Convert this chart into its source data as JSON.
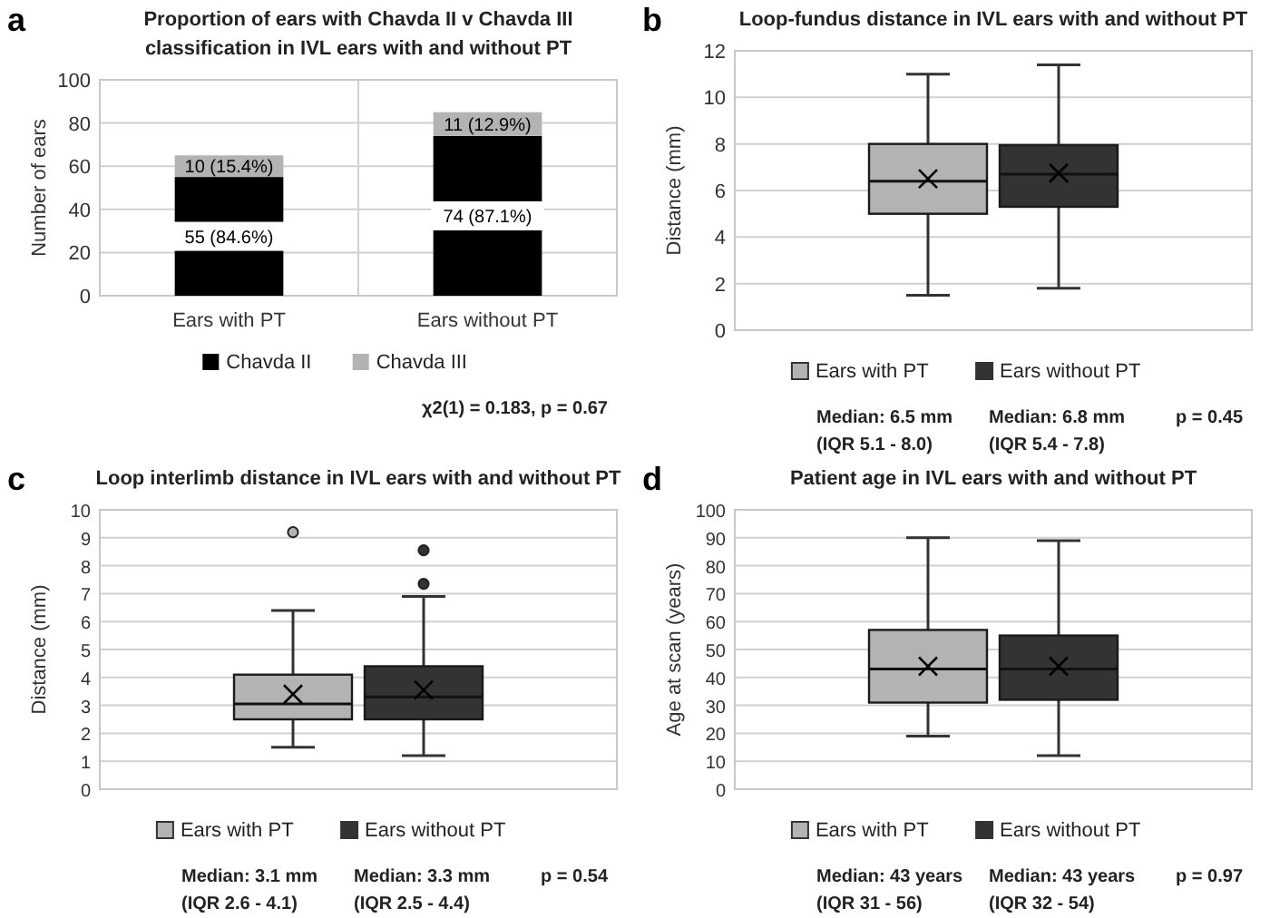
{
  "chart_data": [
    {
      "type": "bar",
      "title": "Proportion of ears with Chavda II v Chavda III classification in IVL ears with and without PT",
      "ylabel": "Number of ears",
      "categories": [
        "Ears with PT",
        "Ears without PT"
      ],
      "stacked": true,
      "ylim": [
        0,
        100
      ],
      "yticks": [
        0,
        20,
        40,
        60,
        80,
        100
      ],
      "grid": true,
      "legend": "bottom",
      "series": [
        {
          "name": "Chavda II",
          "color": "#000000",
          "values": [
            55,
            74
          ],
          "value_labels": [
            "55 (84.6%)",
            "74 (87.1%)"
          ]
        },
        {
          "name": "Chavda III",
          "color": "#b3b3b3",
          "values": [
            10,
            11
          ],
          "value_labels": [
            "10 (15.4%)",
            "11 (12.9%)"
          ]
        }
      ],
      "annotations": [
        "a",
        "χ2(1) = 0.183, p = 0.67"
      ]
    },
    {
      "type": "box",
      "title": "Loop-fundus distance in IVL ears with and without PT",
      "ylabel": "Distance (mm)",
      "categories": [
        null
      ],
      "ylim": [
        0,
        12
      ],
      "yticks": [
        0,
        2,
        4,
        6,
        8,
        10,
        12
      ],
      "grid": true,
      "legend": "bottom",
      "series": [
        {
          "name": "Ears with PT",
          "color": "#b3b3b3",
          "boxes": [
            {
              "low": 1.5,
              "q1": 5.0,
              "median": 6.4,
              "q3": 8.0,
              "high": 11.0,
              "mean": 6.5
            }
          ]
        },
        {
          "name": "Ears without PT",
          "color": "#333333",
          "boxes": [
            {
              "low": 1.8,
              "q1": 5.3,
              "median": 6.7,
              "q3": 7.95,
              "high": 11.4,
              "mean": 6.75
            }
          ]
        }
      ],
      "annotations": [
        "b",
        "Median: 6.5 mm\n(IQR 5.1 - 8.0)",
        "Median: 6.8 mm\n(IQR 5.4 - 7.8)",
        "p = 0.45"
      ]
    },
    {
      "type": "box",
      "title": "Loop interlimb distance in IVL ears with and without PT",
      "ylabel": "Distance (mm)",
      "categories": [
        null
      ],
      "ylim": [
        0,
        10
      ],
      "yticks": [
        0,
        1,
        2,
        3,
        4,
        5,
        6,
        7,
        8,
        9,
        10
      ],
      "grid": true,
      "legend": "bottom",
      "series": [
        {
          "name": "Ears with PT",
          "color": "#b3b3b3",
          "boxes": [
            {
              "low": 1.5,
              "q1": 2.5,
              "median": 3.05,
              "q3": 4.1,
              "high": 6.4,
              "mean": 3.4,
              "outliers": [
                9.2
              ]
            }
          ]
        },
        {
          "name": "Ears without PT",
          "color": "#333333",
          "boxes": [
            {
              "low": 1.2,
              "q1": 2.5,
              "median": 3.3,
              "q3": 4.4,
              "high": 6.9,
              "mean": 3.55,
              "outliers": [
                7.35,
                8.55
              ]
            }
          ]
        }
      ],
      "annotations": [
        "c",
        "Median: 3.1 mm\n(IQR 2.6 - 4.1)",
        "Median: 3.3 mm\n(IQR 2.5 - 4.4)",
        "p = 0.54"
      ]
    },
    {
      "type": "box",
      "title": "Patient age in IVL ears with and without PT",
      "ylabel": "Age at scan (years)",
      "categories": [
        null
      ],
      "ylim": [
        0,
        100
      ],
      "yticks": [
        0,
        10,
        20,
        30,
        40,
        50,
        60,
        70,
        80,
        90,
        100
      ],
      "grid": true,
      "legend": "bottom",
      "series": [
        {
          "name": "Ears with PT",
          "color": "#b3b3b3",
          "boxes": [
            {
              "low": 19,
              "q1": 31,
              "median": 43,
              "q3": 57,
              "high": 90,
              "mean": 44
            }
          ]
        },
        {
          "name": "Ears without PT",
          "color": "#333333",
          "boxes": [
            {
              "low": 12,
              "q1": 32,
              "median": 43,
              "q3": 55,
              "high": 89,
              "mean": 44
            }
          ]
        }
      ],
      "annotations": [
        "d",
        "Median: 43 years\n(IQR 31 - 56)",
        "Median: 43 years\n(IQR 32 - 54)",
        "p = 0.97"
      ]
    }
  ]
}
